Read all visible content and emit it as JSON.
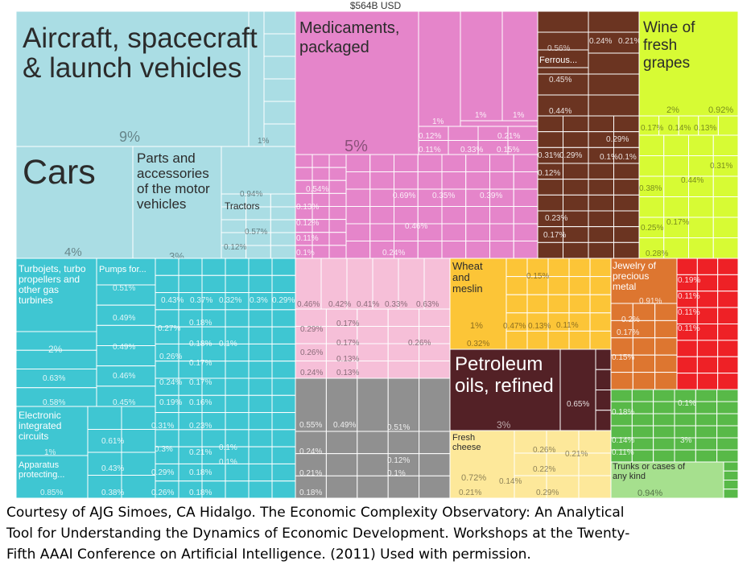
{
  "chart_data": {
    "type": "treemap",
    "total_label": "$564B USD",
    "colors": {
      "transport": "#aadde4",
      "chemicals": "#e585ca",
      "metals": "#6b3421",
      "vegetable": "#d7fb34",
      "machinery": "#3fc6d2",
      "plastics": "#f6bfd8",
      "stone": "#909090",
      "foodstuffs": "#fcc537",
      "mineral": "#532126",
      "precious": "#dd7630",
      "textiles": "#ee2126",
      "animal": "#fde89a",
      "misc": "#58b948",
      "misc_light": "#a6e08e",
      "grid": "#ffffff"
    },
    "blocks": [
      {
        "group": "transport",
        "label": "Aircraft, spacecraft & launch vehicles",
        "pct": "9%",
        "lines": [
          "Aircraft, spacecraft",
          "& launch vehicles"
        ]
      },
      {
        "group": "transport",
        "label": "Cars",
        "pct": "4%",
        "lines": [
          "Cars"
        ]
      },
      {
        "group": "transport",
        "label": "Parts and accessories of the motor vehicles",
        "pct": "3%",
        "lines": [
          "Parts and",
          "accessories",
          "of the motor",
          "vehicles"
        ]
      },
      {
        "group": "transport",
        "label": "Tractors",
        "pct": "0.94%",
        "lines": [
          "Tractors"
        ]
      },
      {
        "group": "chemicals",
        "label": "Medicaments, packaged",
        "pct": "5%",
        "lines": [
          "Medicaments,",
          "packaged"
        ]
      },
      {
        "group": "vegetable",
        "label": "Wine of fresh grapes",
        "pct": "2%",
        "lines": [
          "Wine of",
          "fresh",
          "grapes"
        ]
      },
      {
        "group": "metals",
        "label": "Ferrous...",
        "pct": "0.56%",
        "lines": [
          "Ferrous..."
        ]
      },
      {
        "group": "machinery",
        "label": "Turbojets, turbo propellers and other gas turbines",
        "pct": "2%",
        "lines": [
          "Turbojets, turbo",
          "propellers and",
          "other gas",
          "turbines"
        ]
      },
      {
        "group": "machinery",
        "label": "Pumps for...",
        "pct": "0.51%",
        "lines": [
          "Pumps for..."
        ]
      },
      {
        "group": "machinery",
        "label": "Electronic integrated circuits",
        "pct": "1%",
        "lines": [
          "Electronic",
          "integrated",
          "circuits"
        ]
      },
      {
        "group": "machinery",
        "label": "Apparatus protecting...",
        "pct": "0.85%",
        "lines": [
          "Apparatus",
          "protecting..."
        ]
      },
      {
        "group": "foodstuffs",
        "label": "Wheat and meslin",
        "pct": "1%",
        "lines": [
          "Wheat",
          "and",
          "meslin"
        ]
      },
      {
        "group": "mineral",
        "label": "Petroleum oils, refined",
        "pct": "3%",
        "lines": [
          "Petroleum",
          "oils, refined"
        ]
      },
      {
        "group": "precious",
        "label": "Jewelry of precious metal",
        "pct": "0.91%",
        "lines": [
          "Jewelry of",
          "precious",
          "metal"
        ]
      },
      {
        "group": "animal",
        "label": "Fresh cheese",
        "pct": "0.72%",
        "lines": [
          "Fresh",
          "cheese"
        ]
      },
      {
        "group": "misc_light",
        "label": "Trunks or cases of any kind",
        "pct": "0.94%",
        "lines": [
          "Trunks or cases of",
          "any kind"
        ]
      }
    ],
    "small_labels": [
      "1%",
      "0.57%",
      "0.12%",
      "0.54%",
      "0.13%",
      "0.12%",
      "0.11%",
      "0.1%",
      "0.24%",
      "0.46%",
      "0.69%",
      "0.35%",
      "0.39%",
      "0.12%",
      "0.11%",
      "0.33%",
      "0.15%",
      "0.21%",
      "1%",
      "1%",
      "1%",
      "0.45%",
      "0.44%",
      "0.29%",
      "0.31%",
      "0.29%",
      "0.1%",
      "0.1%",
      "0.12%",
      "0.23%",
      "0.17%",
      "0.24%",
      "0.21%",
      "0.92%",
      "0.17%",
      "0.14%",
      "0.13%",
      "0.31%",
      "0.44%",
      "0.38%",
      "0.25%",
      "0.17%",
      "0.28%",
      "0.49%",
      "0.49%",
      "0.46%",
      "0.45%",
      "0.63%",
      "0.58%",
      "0.43%",
      "0.37%",
      "0.32%",
      "0.3%",
      "0.29%",
      "0.27%",
      "0.18%",
      "0.18%",
      "0.1%",
      "0.26%",
      "0.17%",
      "0.24%",
      "0.17%",
      "0.19%",
      "0.16%",
      "0.61%",
      "0.31%",
      "0.23%",
      "0.3%",
      "0.21%",
      "0.1%",
      "0.1%",
      "0.43%",
      "0.29%",
      "0.18%",
      "0.38%",
      "0.26%",
      "0.18%",
      "0.46%",
      "0.42%",
      "0.41%",
      "0.33%",
      "0.63%",
      "0.29%",
      "0.17%",
      "0.17%",
      "0.26%",
      "0.26%",
      "0.13%",
      "0.24%",
      "0.13%",
      "0.55%",
      "0.49%",
      "0.51%",
      "0.24%",
      "0.12%",
      "0.1%",
      "0.21%",
      "0.18%",
      "0.15%",
      "0.47%",
      "0.13%",
      "0.11%",
      "0.32%",
      "0.65%",
      "0.2%",
      "0.17%",
      "0.15%",
      "0.19%",
      "0.11%",
      "0.11%",
      "0.11%",
      "0.26%",
      "0.21%",
      "0.22%",
      "0.14%",
      "0.29%",
      "0.18%",
      "0.21%",
      "0.14%",
      "0.11%",
      "0.1%",
      "3%"
    ]
  },
  "caption": {
    "line1": "Courtesy of AJG Simoes, CA Hidalgo. The Economic Complexity Observatory: An Analytical",
    "line2": "Tool for Understanding the Dynamics of Economic Development. Workshops at the Twenty-",
    "line3": "Fifth AAAI Conference on Artificial Intelligence. (2011) Used with permission."
  }
}
